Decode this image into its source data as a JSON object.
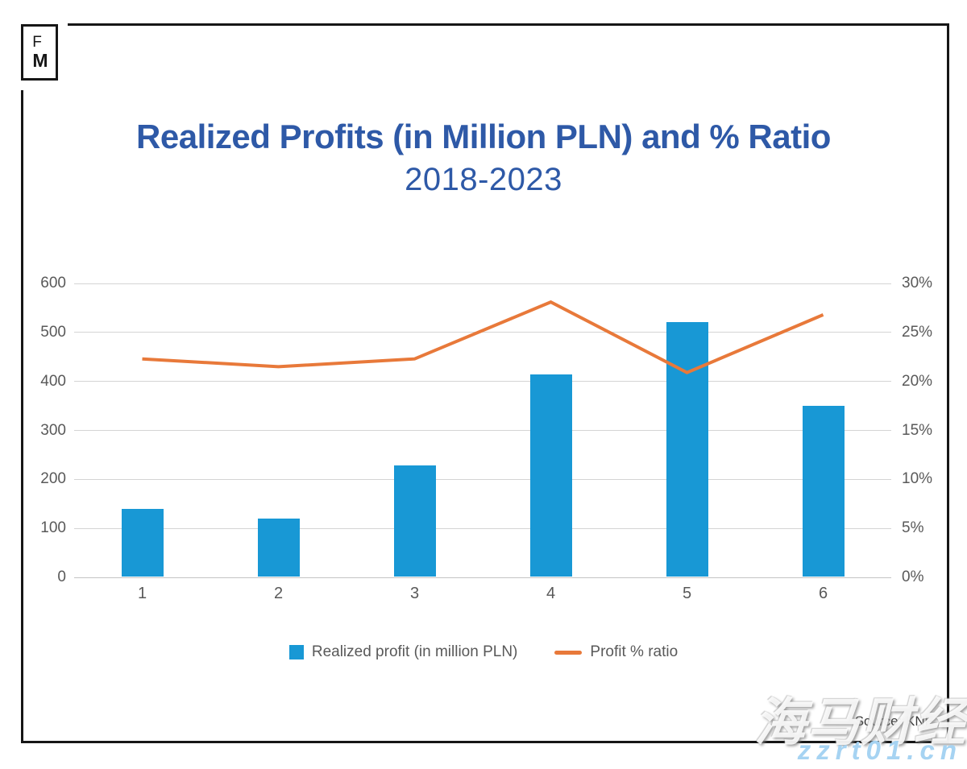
{
  "logo": {
    "top": "F",
    "bottom": "M"
  },
  "footer": {
    "source": "Source: KNF"
  },
  "watermark": {
    "text": "海马财经",
    "site": "zzrt01.cn"
  },
  "colors": {
    "title_blue": "#2e59a7",
    "bar_blue": "#1898d5",
    "line_orange": "#e8793a",
    "axis_gray": "#595959",
    "gridline_gray": "#d4d4d4",
    "frame_black": "#161616",
    "watermark_blue": "#a6d3f2",
    "source_gray": "#3a3a3a"
  },
  "chart_data": {
    "type": "bar",
    "title": "Realized Profits (in Million PLN) and % Ratio",
    "subtitle": "2018-2023",
    "categories": [
      "1",
      "2",
      "3",
      "4",
      "5",
      "6"
    ],
    "series": [
      {
        "name": "Realized profit (in million PLN)",
        "type": "bar",
        "axis": "left",
        "color": "#1898d5",
        "values": [
          138,
          119,
          227,
          412,
          519,
          349
        ]
      },
      {
        "name": "Profit % ratio",
        "type": "line",
        "axis": "right",
        "color": "#e8793a",
        "values": [
          22.3,
          21.5,
          22.3,
          28.1,
          20.9,
          26.8
        ]
      }
    ],
    "left_axis": {
      "min": 0,
      "max": 600,
      "ticks": [
        "600",
        "500",
        "400",
        "300",
        "200",
        "100",
        "0"
      ]
    },
    "right_axis": {
      "min": 0,
      "max": 30,
      "ticks": [
        "30%",
        "25%",
        "20%",
        "15%",
        "10%",
        "5%",
        "0%"
      ]
    },
    "grid": true,
    "legend_position": "bottom"
  }
}
